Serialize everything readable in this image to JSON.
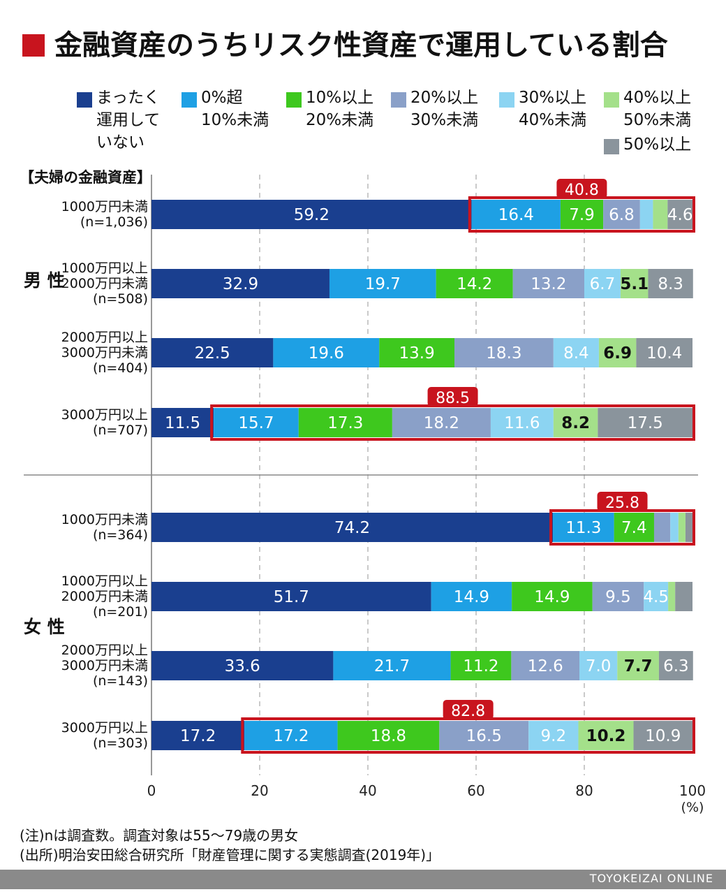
{
  "title": "金融資産のうちリスク性資産で運用している割合",
  "section_label": "【夫婦の金融資産】",
  "colors": {
    "accent": "#c8141e",
    "categories": [
      "#1a3f8f",
      "#1ea0e4",
      "#3ec81e",
      "#8aa0c8",
      "#8cd4f2",
      "#a4e08a",
      "#8a949c"
    ]
  },
  "legend": [
    "まったく\n運用して\nいない",
    "0%超\n10%未満",
    "10%以上\n20%未満",
    "20%以上\n30%未満",
    "30%以上\n40%未満",
    "40%以上\n50%未満",
    "50%以上"
  ],
  "groups": [
    {
      "label": "男\n性"
    },
    {
      "label": "女\n性"
    }
  ],
  "chart_data": {
    "type": "bar",
    "orientation": "horizontal-stacked",
    "xlim": [
      0,
      100
    ],
    "x_ticks": [
      "0",
      "20",
      "40",
      "60",
      "80",
      "100"
    ],
    "x_unit": "(%)",
    "grid": "vertical dashed",
    "rows": [
      {
        "group": "男性",
        "label": "1000万円未満\n(n=1,036)",
        "values": [
          59.2,
          16.4,
          7.9,
          6.8,
          2.4,
          2.7,
          4.6
        ],
        "labels": [
          "59.2",
          "16.4",
          "7.9",
          "6.8",
          "",
          "",
          "4.6"
        ],
        "highlight_from": 1,
        "highlight_value": "40.8"
      },
      {
        "group": "男性",
        "label": "1000万円以上\n2000万円未満\n(n=508)",
        "values": [
          32.9,
          19.7,
          14.2,
          13.2,
          6.7,
          5.1,
          8.3
        ],
        "labels": [
          "32.9",
          "19.7",
          "14.2",
          "13.2",
          "6.7",
          "5.1",
          "8.3"
        ]
      },
      {
        "group": "男性",
        "label": "2000万円以上\n3000万円未満\n(n=404)",
        "values": [
          22.5,
          19.6,
          13.9,
          18.3,
          8.4,
          6.9,
          10.4
        ],
        "labels": [
          "22.5",
          "19.6",
          "13.9",
          "18.3",
          "8.4",
          "6.9",
          "10.4"
        ]
      },
      {
        "group": "男性",
        "label": "3000万円以上\n(n=707)",
        "values": [
          11.5,
          15.7,
          17.3,
          18.2,
          11.6,
          8.2,
          17.5
        ],
        "labels": [
          "11.5",
          "15.7",
          "17.3",
          "18.2",
          "11.6",
          "8.2",
          "17.5"
        ],
        "highlight_from": 1,
        "highlight_value": "88.5"
      },
      {
        "group": "女性",
        "label": "1000万円未満\n(n=364)",
        "values": [
          74.2,
          11.3,
          7.4,
          3.0,
          1.5,
          1.3,
          1.3
        ],
        "labels": [
          "74.2",
          "11.3",
          "7.4",
          "",
          "",
          "",
          ""
        ],
        "highlight_from": 1,
        "highlight_value": "25.8"
      },
      {
        "group": "女性",
        "label": "1000万円以上\n2000万円未満\n(n=201)",
        "values": [
          51.7,
          14.9,
          14.9,
          9.5,
          4.5,
          1.3,
          3.2
        ],
        "labels": [
          "51.7",
          "14.9",
          "14.9",
          "9.5",
          "4.5",
          "",
          ""
        ]
      },
      {
        "group": "女性",
        "label": "2000万円以上\n3000万円未満\n(n=143)",
        "values": [
          33.6,
          21.7,
          11.2,
          12.6,
          7.0,
          7.7,
          6.3
        ],
        "labels": [
          "33.6",
          "21.7",
          "11.2",
          "12.6",
          "7.0",
          "7.7",
          "6.3"
        ]
      },
      {
        "group": "女性",
        "label": "3000万円以上\n(n=303)",
        "values": [
          17.2,
          17.2,
          18.8,
          16.5,
          9.2,
          10.2,
          10.9
        ],
        "labels": [
          "17.2",
          "17.2",
          "18.8",
          "16.5",
          "9.2",
          "10.2",
          "10.9"
        ],
        "highlight_from": 1,
        "highlight_value": "82.8"
      }
    ]
  },
  "notes": [
    "(注)nは調査数。調査対象は55〜79歳の男女",
    "(出所)明治安田総合研究所「財産管理に関する実態調査(2019年)」"
  ],
  "footer": "TOYOKEIZAI ONLINE"
}
